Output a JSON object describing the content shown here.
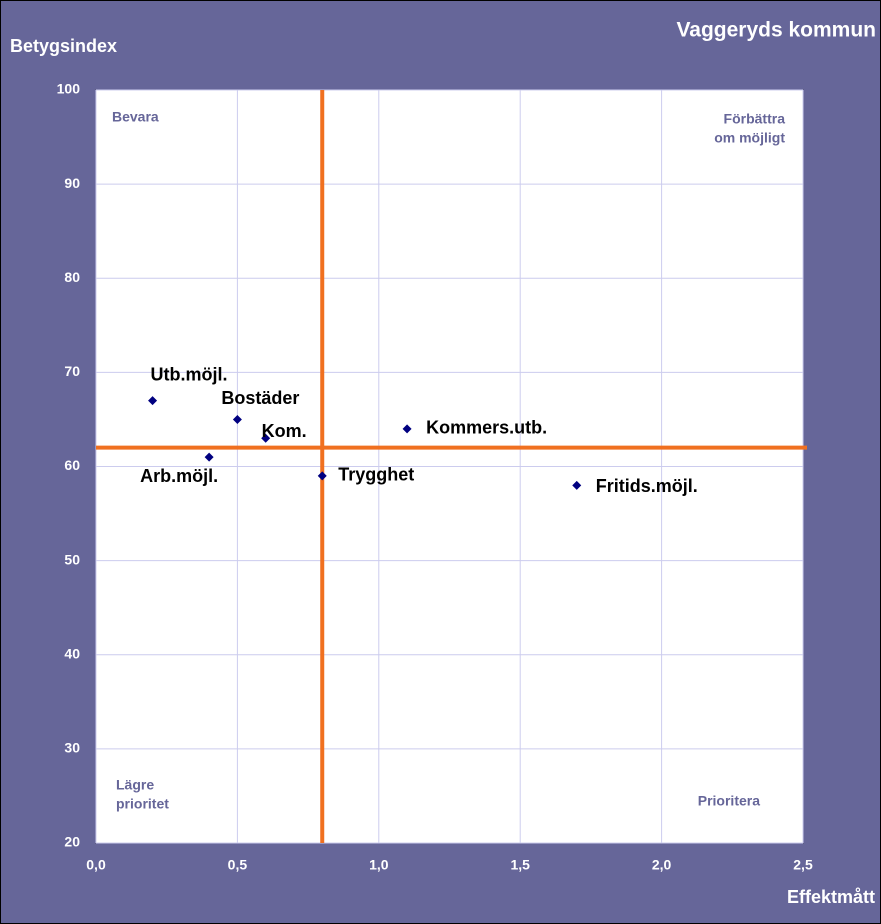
{
  "chart_data": {
    "type": "scatter",
    "title": "Vaggeryds kommun",
    "y_label": "Betygsindex",
    "x_label": "Effektmått",
    "labels": [
      "Utb.möjl.",
      "Bostäder",
      "Kom.",
      "Arb.möjl.",
      "Trygghet",
      "Kommers.utb.",
      "Fritids.möjl."
    ],
    "x": [
      0.2,
      0.5,
      0.6,
      0.4,
      0.8,
      1.1,
      1.7
    ],
    "y": [
      67,
      65,
      63,
      61,
      59,
      64,
      58
    ],
    "color": "#000080",
    "ref_x": 0.8,
    "ref_y": 62,
    "ref_color": "#f07020",
    "xlim": [
      0,
      2.5
    ],
    "ylim": [
      20,
      100
    ],
    "xticks": [
      {
        "value": 0,
        "label": "0,0"
      },
      {
        "value": 0.5,
        "label": "0,5"
      },
      {
        "value": 1,
        "label": "1,0"
      },
      {
        "value": 1.5,
        "label": "1,5"
      },
      {
        "value": 2,
        "label": "2,0"
      },
      {
        "value": 2.5,
        "label": "2,5"
      }
    ],
    "yticks": [
      20,
      30,
      40,
      50,
      60,
      70,
      80,
      90,
      100
    ],
    "grid": true,
    "quadrant_labels": [
      [
        "Bevara"
      ],
      [
        "Förbättra",
        "om möjligt"
      ],
      [
        "Lägre",
        "prioritet"
      ],
      [
        "Prioritera"
      ]
    ]
  }
}
